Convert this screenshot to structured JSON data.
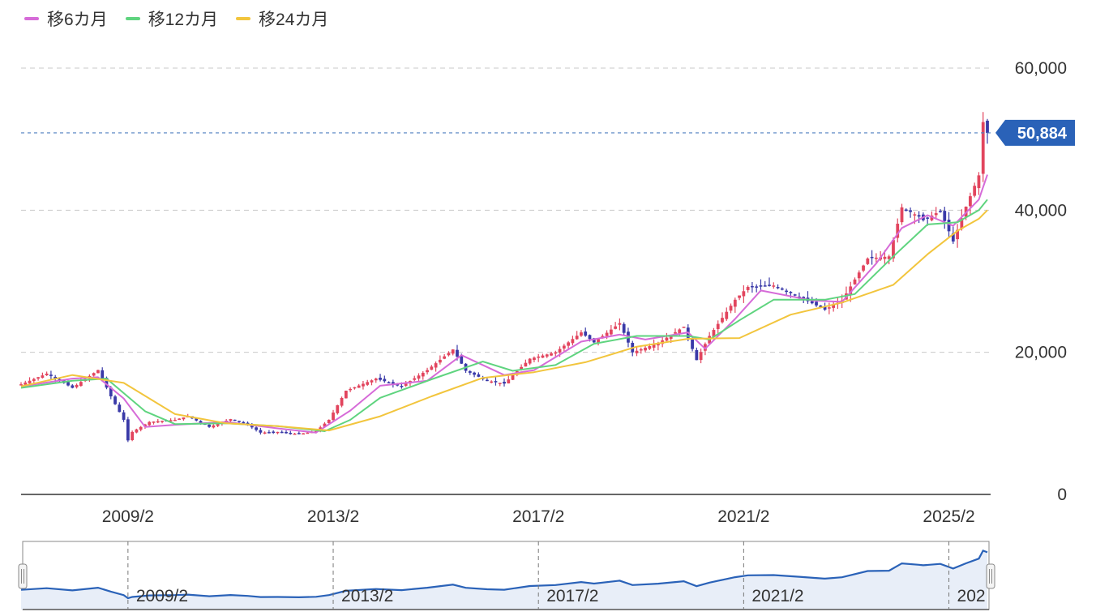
{
  "legend": [
    {
      "label": "移6カ月",
      "color": "#d66bd8"
    },
    {
      "label": "移12カ月",
      "color": "#5fd47f"
    },
    {
      "label": "移24カ月",
      "color": "#f2c53d"
    }
  ],
  "chart_data": {
    "type": "candlestick",
    "yaxis": {
      "ticks": [
        "60,000",
        "40,000",
        "20,000",
        "0"
      ],
      "tick_values": [
        60000,
        40000,
        20000,
        0
      ],
      "ylim": [
        0,
        60000
      ],
      "position": "right",
      "grid": "dashed"
    },
    "xaxis": {
      "tick_labels": [
        "2009/2",
        "2013/2",
        "2017/2",
        "2021/2",
        "2025/2"
      ],
      "xlim": [
        "2007/1",
        "2025/11"
      ]
    },
    "last_price": {
      "value": 50884,
      "label": "50,884",
      "color": "#2a62b8"
    },
    "colors": {
      "up": "#e2455e",
      "down": "#3a3aa8"
    },
    "close_series": [
      [
        "2007/1",
        15500
      ],
      [
        "2007/7",
        17000
      ],
      [
        "2008/1",
        15000
      ],
      [
        "2008/7",
        17500
      ],
      [
        "2008/10",
        13800
      ],
      [
        "2009/1",
        10500
      ],
      [
        "2009/2",
        7600
      ],
      [
        "2009/3",
        8800
      ],
      [
        "2009/7",
        10200
      ],
      [
        "2010/1",
        10500
      ],
      [
        "2010/4",
        11000
      ],
      [
        "2010/9",
        9500
      ],
      [
        "2011/2",
        10600
      ],
      [
        "2011/6",
        9800
      ],
      [
        "2011/9",
        8700
      ],
      [
        "2012/1",
        8800
      ],
      [
        "2012/6",
        8500
      ],
      [
        "2012/10",
        8900
      ],
      [
        "2013/1",
        10500
      ],
      [
        "2013/5",
        14600
      ],
      [
        "2013/12",
        16300
      ],
      [
        "2014/6",
        15200
      ],
      [
        "2014/12",
        17500
      ],
      [
        "2015/6",
        20400
      ],
      [
        "2015/9",
        17400
      ],
      [
        "2016/2",
        16000
      ],
      [
        "2016/6",
        15600
      ],
      [
        "2016/12",
        19100
      ],
      [
        "2017/6",
        20000
      ],
      [
        "2017/12",
        22800
      ],
      [
        "2018/3",
        21400
      ],
      [
        "2018/9",
        24100
      ],
      [
        "2018/12",
        20000
      ],
      [
        "2019/6",
        21300
      ],
      [
        "2019/12",
        23600
      ],
      [
        "2020/3",
        18900
      ],
      [
        "2020/6",
        22300
      ],
      [
        "2020/12",
        27400
      ],
      [
        "2021/3",
        29200
      ],
      [
        "2021/9",
        29400
      ],
      [
        "2022/3",
        27800
      ],
      [
        "2022/9",
        26000
      ],
      [
        "2023/1",
        27300
      ],
      [
        "2023/7",
        33200
      ],
      [
        "2023/12",
        33500
      ],
      [
        "2024/3",
        40400
      ],
      [
        "2024/7",
        39100
      ],
      [
        "2024/8",
        38600
      ],
      [
        "2024/12",
        39900
      ],
      [
        "2025/3",
        35600
      ],
      [
        "2025/6",
        40500
      ],
      [
        "2025/9",
        44900
      ],
      [
        "2025/10",
        52400
      ],
      [
        "2025/11",
        50884
      ]
    ],
    "moving_averages": [
      {
        "name": "移6カ月",
        "color": "#d66bd8",
        "values": [
          [
            "2007/1",
            15200
          ],
          [
            "2008/1",
            16300
          ],
          [
            "2008/7",
            16500
          ],
          [
            "2009/1",
            13500
          ],
          [
            "2009/6",
            9500
          ],
          [
            "2010/1",
            9800
          ],
          [
            "2011/1",
            10200
          ],
          [
            "2012/1",
            9300
          ],
          [
            "2012/10",
            8700
          ],
          [
            "2013/6",
            11800
          ],
          [
            "2014/1",
            15300
          ],
          [
            "2014/12",
            16000
          ],
          [
            "2015/8",
            19600
          ],
          [
            "2016/6",
            16800
          ],
          [
            "2017/1",
            17500
          ],
          [
            "2017/12",
            21500
          ],
          [
            "2018/9",
            22500
          ],
          [
            "2019/3",
            21800
          ],
          [
            "2020/1",
            22800
          ],
          [
            "2020/5",
            20500
          ],
          [
            "2020/12",
            24700
          ],
          [
            "2021/6",
            28700
          ],
          [
            "2022/6",
            27300
          ],
          [
            "2023/1",
            27100
          ],
          [
            "2023/9",
            32500
          ],
          [
            "2024/3",
            37500
          ],
          [
            "2024/9",
            39300
          ],
          [
            "2025/3",
            37800
          ],
          [
            "2025/9",
            41500
          ],
          [
            "2025/11",
            45000
          ]
        ]
      },
      {
        "name": "移12カ月",
        "color": "#5fd47f",
        "values": [
          [
            "2007/1",
            15000
          ],
          [
            "2008/1",
            16000
          ],
          [
            "2008/9",
            16300
          ],
          [
            "2009/6",
            11700
          ],
          [
            "2010/1",
            9900
          ],
          [
            "2011/1",
            10000
          ],
          [
            "2012/1",
            9600
          ],
          [
            "2012/12",
            8900
          ],
          [
            "2013/6",
            10500
          ],
          [
            "2014/1",
            13600
          ],
          [
            "2015/1",
            16200
          ],
          [
            "2016/1",
            18700
          ],
          [
            "2016/8",
            17400
          ],
          [
            "2017/6",
            18200
          ],
          [
            "2018/3",
            21200
          ],
          [
            "2019/1",
            22300
          ],
          [
            "2020/1",
            22300
          ],
          [
            "2020/6",
            21800
          ],
          [
            "2021/1",
            24500
          ],
          [
            "2021/9",
            27400
          ],
          [
            "2022/9",
            27400
          ],
          [
            "2023/4",
            28200
          ],
          [
            "2024/1",
            33500
          ],
          [
            "2024/9",
            38000
          ],
          [
            "2025/4",
            38300
          ],
          [
            "2025/9",
            40000
          ],
          [
            "2025/11",
            41500
          ]
        ]
      },
      {
        "name": "移24カ月",
        "color": "#f2c53d",
        "values": [
          [
            "2007/1",
            15200
          ],
          [
            "2008/1",
            16800
          ],
          [
            "2009/1",
            15700
          ],
          [
            "2010/1",
            11300
          ],
          [
            "2011/1",
            10000
          ],
          [
            "2012/1",
            9600
          ],
          [
            "2013/1",
            9000
          ],
          [
            "2014/1",
            11000
          ],
          [
            "2015/1",
            13800
          ],
          [
            "2016/1",
            16400
          ],
          [
            "2017/1",
            17200
          ],
          [
            "2018/1",
            18600
          ],
          [
            "2019/1",
            20800
          ],
          [
            "2020/1",
            21900
          ],
          [
            "2021/1",
            22000
          ],
          [
            "2022/1",
            25300
          ],
          [
            "2023/1",
            27000
          ],
          [
            "2024/1",
            29500
          ],
          [
            "2024/9",
            33800
          ],
          [
            "2025/4",
            37100
          ],
          [
            "2025/9",
            38800
          ],
          [
            "2025/11",
            40000
          ]
        ]
      }
    ]
  },
  "navigator": {
    "tick_labels": [
      "2009/2",
      "2013/2",
      "2017/2",
      "2021/2",
      "202"
    ]
  }
}
